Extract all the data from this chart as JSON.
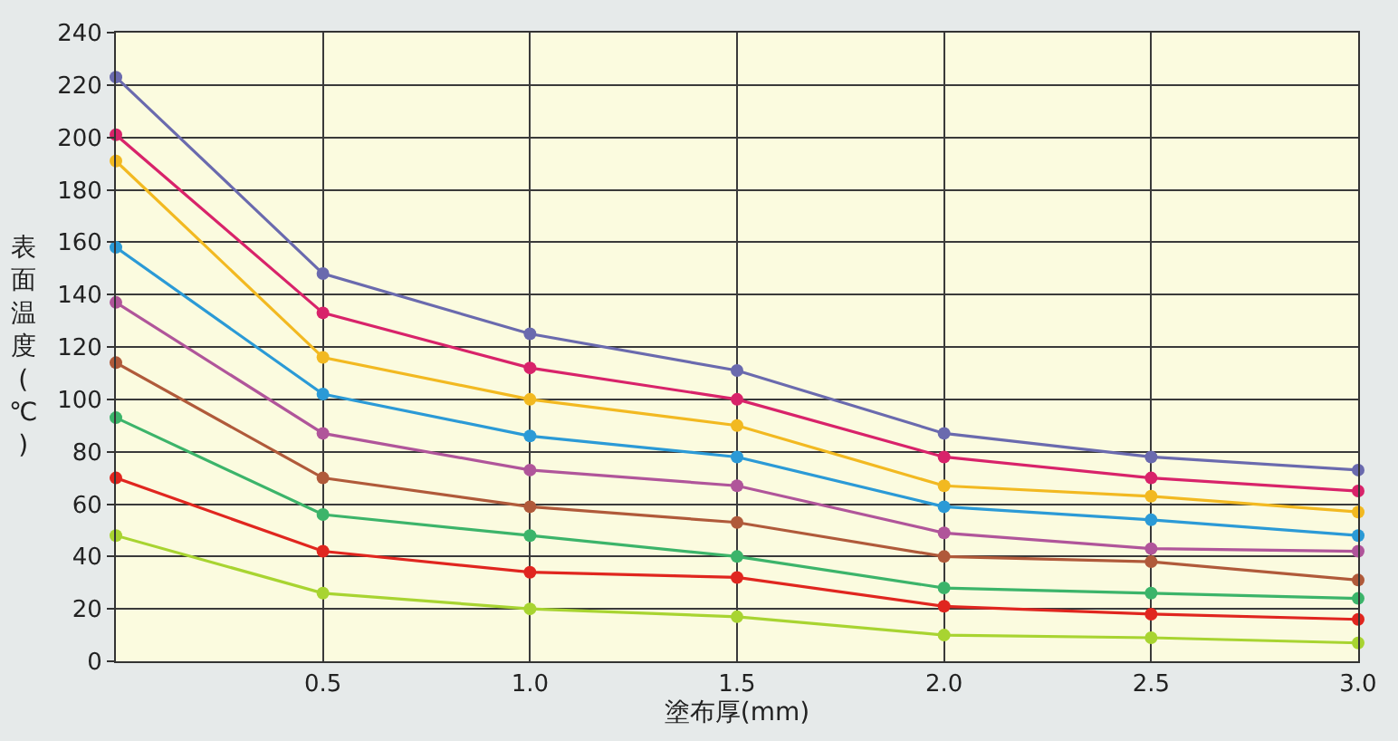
{
  "chart_data": {
    "type": "line",
    "xlabel": "塗布厚(mm)",
    "ylabel": "表面温度(℃)",
    "x": [
      0,
      0.5,
      1.0,
      1.5,
      2.0,
      2.5,
      3.0
    ],
    "xlim": [
      0,
      3
    ],
    "xticks": [
      {
        "value": 0.5,
        "label": "0.5"
      },
      {
        "value": 1.0,
        "label": "1.0"
      },
      {
        "value": 1.5,
        "label": "1.5"
      },
      {
        "value": 2.0,
        "label": "2.0"
      },
      {
        "value": 2.5,
        "label": "2.5"
      },
      {
        "value": 3.0,
        "label": "3.0"
      }
    ],
    "ylim": [
      0,
      240
    ],
    "yticks": [
      0,
      20,
      40,
      60,
      80,
      100,
      120,
      140,
      160,
      180,
      200,
      220,
      240
    ],
    "grid": true,
    "marker": "circle",
    "line_style": "solid",
    "series": [
      {
        "color": "#6a6aae",
        "values": [
          223,
          148,
          125,
          111,
          87,
          78,
          73
        ]
      },
      {
        "color": "#d8236a",
        "values": [
          201,
          133,
          112,
          100,
          78,
          70,
          65
        ]
      },
      {
        "color": "#f2b921",
        "values": [
          191,
          116,
          100,
          90,
          67,
          63,
          57
        ]
      },
      {
        "color": "#2b9ad6",
        "values": [
          158,
          102,
          86,
          78,
          59,
          54,
          48
        ]
      },
      {
        "color": "#b0559a",
        "values": [
          137,
          87,
          73,
          67,
          49,
          43,
          42
        ]
      },
      {
        "color": "#b05a3a",
        "values": [
          114,
          70,
          59,
          53,
          40,
          38,
          31
        ]
      },
      {
        "color": "#3cb46a",
        "values": [
          93,
          56,
          48,
          40,
          28,
          26,
          24
        ]
      },
      {
        "color": "#e0261f",
        "values": [
          70,
          42,
          34,
          32,
          21,
          18,
          16
        ]
      },
      {
        "color": "#a8d431",
        "values": [
          48,
          26,
          20,
          17,
          10,
          9,
          7
        ]
      }
    ]
  }
}
